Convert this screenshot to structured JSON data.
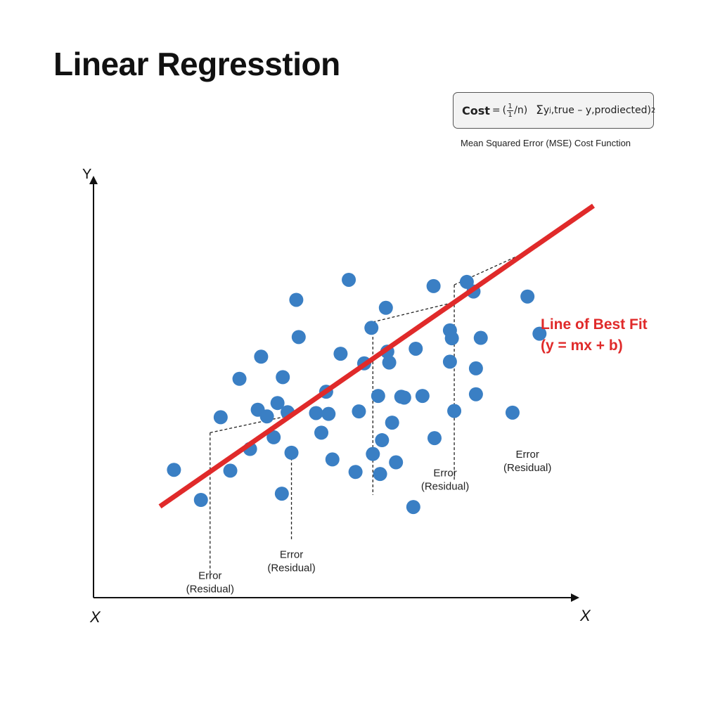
{
  "header": {
    "title": "Linear Regresstion"
  },
  "formula": {
    "cost_label": "Cost",
    "equals": "=",
    "paren_open": "(",
    "frac_numerator": "1",
    "frac_denominator": "1",
    "over_n": "/n)",
    "sigma": "Σ",
    "sum_term": "y",
    "sum_sub": "j",
    "sum_text": ",true – y,prodiected)",
    "exponent": "2",
    "caption": "Mean Squared Error (MSE) Cost Function"
  },
  "chart_data": {
    "type": "scatter",
    "xlabel": "X",
    "xlabel_end": "X",
    "ylabel": "Y",
    "xlim": [
      0,
      100
    ],
    "ylim": [
      0,
      100
    ],
    "point_color": "#3a7fc4",
    "line_color": "#e02a2a",
    "points": [
      [
        16.7,
        30.6
      ],
      [
        22.3,
        23.4
      ],
      [
        26.4,
        43.2
      ],
      [
        28.4,
        30.4
      ],
      [
        30.3,
        52.4
      ],
      [
        32.5,
        35.6
      ],
      [
        34.1,
        45.0
      ],
      [
        34.8,
        57.7
      ],
      [
        36.0,
        43.4
      ],
      [
        37.4,
        38.4
      ],
      [
        38.2,
        46.6
      ],
      [
        39.1,
        24.9
      ],
      [
        39.3,
        52.8
      ],
      [
        40.3,
        44.4
      ],
      [
        41.1,
        34.7
      ],
      [
        42.1,
        71.3
      ],
      [
        42.6,
        62.4
      ],
      [
        46.2,
        44.2
      ],
      [
        47.3,
        39.5
      ],
      [
        48.3,
        49.3
      ],
      [
        48.8,
        44.0
      ],
      [
        49.6,
        33.1
      ],
      [
        51.3,
        58.4
      ],
      [
        53.0,
        76.1
      ],
      [
        54.4,
        30.1
      ],
      [
        55.1,
        44.6
      ],
      [
        56.2,
        56.1
      ],
      [
        57.7,
        64.6
      ],
      [
        58.0,
        34.4
      ],
      [
        59.1,
        48.3
      ],
      [
        59.5,
        29.6
      ],
      [
        59.9,
        37.7
      ],
      [
        60.7,
        69.4
      ],
      [
        61.0,
        58.9
      ],
      [
        61.4,
        56.3
      ],
      [
        62.0,
        41.9
      ],
      [
        62.8,
        32.4
      ],
      [
        63.9,
        48.1
      ],
      [
        64.5,
        47.9
      ],
      [
        66.4,
        21.7
      ],
      [
        66.9,
        59.6
      ],
      [
        68.3,
        48.3
      ],
      [
        70.6,
        74.6
      ],
      [
        70.8,
        38.2
      ],
      [
        74.0,
        56.5
      ],
      [
        74.0,
        64.0
      ],
      [
        74.9,
        44.7
      ],
      [
        74.4,
        62.1
      ],
      [
        77.5,
        75.6
      ],
      [
        78.9,
        73.3
      ],
      [
        79.4,
        54.9
      ],
      [
        79.4,
        48.7
      ],
      [
        80.4,
        62.2
      ],
      [
        87.0,
        44.3
      ],
      [
        90.1,
        72.1
      ],
      [
        92.6,
        63.2
      ]
    ],
    "best_fit": {
      "slope": 0.8,
      "intercept": 10.8,
      "x_range": [
        13.8,
        103.8
      ]
    },
    "line_label_1": "Line of Best Fit",
    "line_label_2": "(y = mx + b)",
    "residual_lines": [
      {
        "x": 24.2,
        "x2": 41.1,
        "y_top": 39.5,
        "y_bottom": 4.4
      },
      {
        "x": 41.1,
        "x2": 41.1,
        "y_top": 34.7,
        "y_bottom": 14.0
      },
      {
        "x": 58.0,
        "x2": 74.9,
        "y_top": 66.0,
        "y_bottom": 24.6
      },
      {
        "x": 74.9,
        "x2": 90.1,
        "y_top": 74.9,
        "y_bottom": 28.0
      }
    ],
    "error_labels": [
      {
        "line1": "Error",
        "line2": "(Residual)",
        "x": 24.2,
        "y": 4.5
      },
      {
        "line1": "Error",
        "line2": "(Residual)",
        "x": 41.1,
        "y": 9.5
      },
      {
        "line1": "Error",
        "line2": "(Residual)",
        "x": 73.0,
        "y": 29.0
      },
      {
        "line1": "Error",
        "line2": "(Residual)",
        "x": 90.1,
        "y": 33.5
      }
    ]
  }
}
